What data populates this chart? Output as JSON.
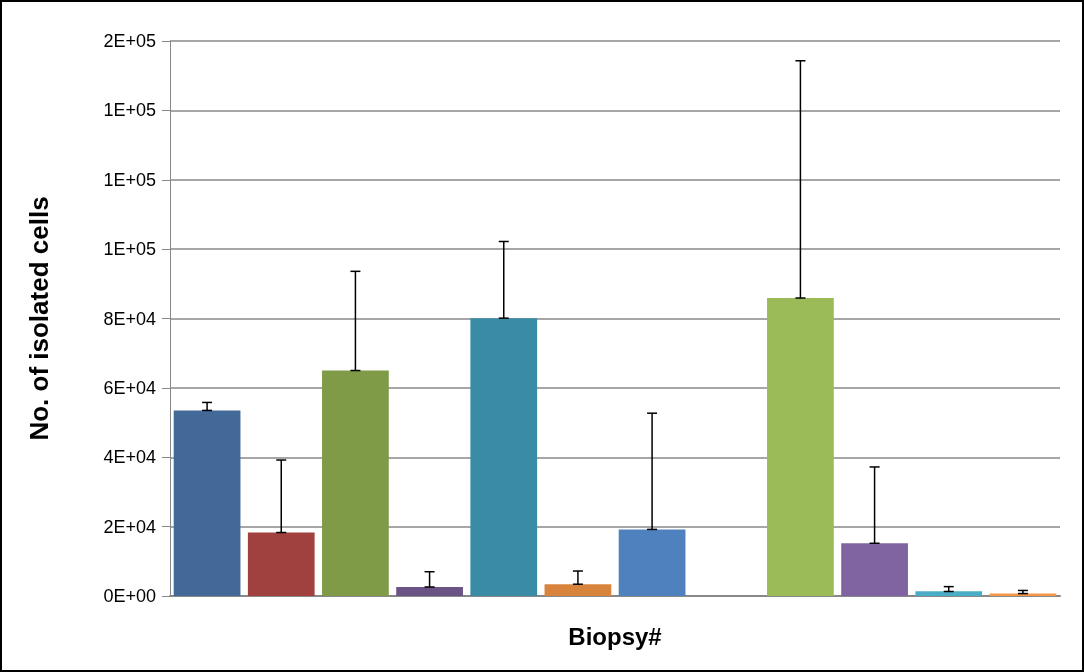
{
  "chart_data": {
    "type": "bar",
    "xlabel": "Biopsy#",
    "ylabel": "No. of isolated cells",
    "categories": [
      null,
      null,
      null,
      null,
      null,
      null,
      null,
      null,
      null,
      null,
      null,
      null
    ],
    "values": [
      53500,
      18300,
      65000,
      2600,
      80100,
      3400,
      19200,
      null,
      85900,
      15200,
      1400,
      700
    ],
    "colors": [
      "#426998",
      "#a0413f",
      "#7f9b48",
      "#6a5385",
      "#3a8ca6",
      "#d9843c",
      "#4e81bd",
      null,
      "#9bbb59",
      "#8064a2",
      "#4bacc6",
      "#f79646"
    ],
    "errors": [
      [
        53500,
        55800
      ],
      [
        18300,
        39200
      ],
      [
        65000,
        93600
      ],
      [
        2600,
        7000
      ],
      [
        80100,
        102200
      ],
      [
        3400,
        7200
      ],
      [
        19200,
        52700
      ],
      null,
      [
        85900,
        154300
      ],
      [
        15200,
        37200
      ],
      [
        1300,
        2700
      ],
      [
        700,
        1600
      ]
    ],
    "ylim": [
      0,
      160000
    ],
    "yticks": [
      {
        "value": 0,
        "label": "0E+00"
      },
      {
        "value": 20000,
        "label": "2E+04"
      },
      {
        "value": 40000,
        "label": "4E+04"
      },
      {
        "value": 60000,
        "label": "6E+04"
      },
      {
        "value": 80000,
        "label": "8E+04"
      },
      {
        "value": 100000,
        "label": "1E+05"
      },
      {
        "value": 120000,
        "label": "1E+05"
      },
      {
        "value": 140000,
        "label": "1E+05"
      },
      {
        "value": 160000,
        "label": "2E+05"
      }
    ],
    "grid": "y"
  }
}
